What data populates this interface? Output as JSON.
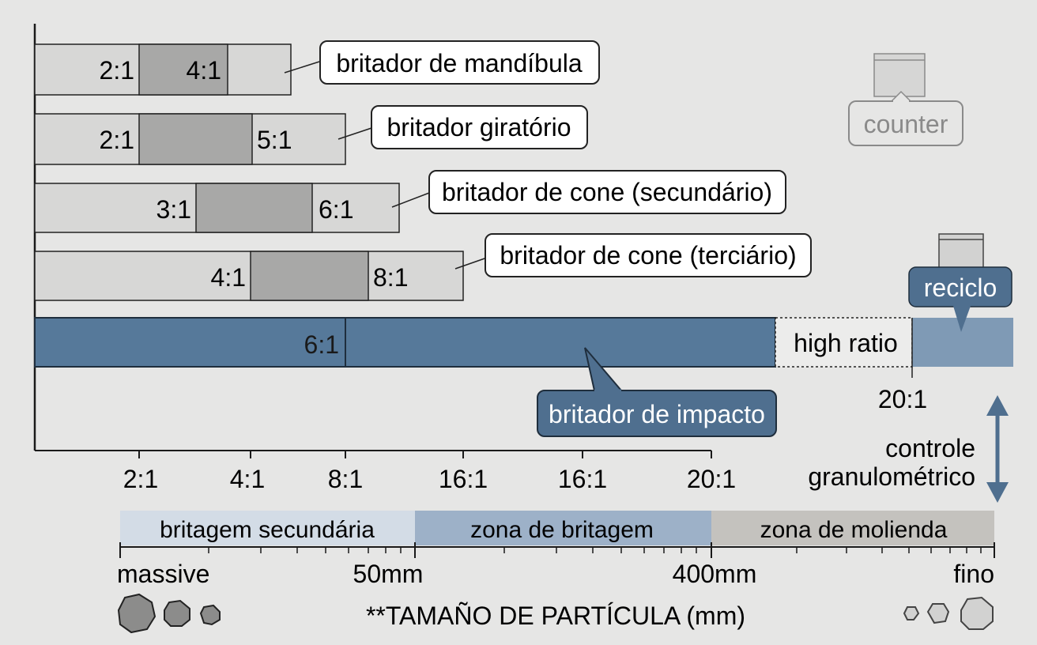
{
  "crushers": [
    {
      "label": "britador de mandíbula",
      "ratio_low": "2:1",
      "ratio_high": "4:1"
    },
    {
      "label": "britador giratório",
      "ratio_low": "2:1",
      "ratio_high": "5:1"
    },
    {
      "label": "britador de cone (secundário)",
      "ratio_low": "3:1",
      "ratio_high": "6:1"
    },
    {
      "label": "britador de cone (terciário)",
      "ratio_low": "4:1",
      "ratio_high": "8:1"
    }
  ],
  "impact": {
    "label": "britador de impacto",
    "ratio": "6:1",
    "high_ratio_label": "high ratio",
    "recycle_label": "reciclo",
    "max_ratio": "20:1"
  },
  "counter_label": "counter",
  "control_label_line1": "controle",
  "control_label_line2": "granulométrico",
  "x_axis_ticks": [
    "2:1",
    "4:1",
    "8:1",
    "16:1",
    "16:1",
    "20:1"
  ],
  "zones": [
    "britagem secundária",
    "zona de britagem",
    "zona de molienda"
  ],
  "size_labels": {
    "left": "massive",
    "mid1": "50mm",
    "mid2": "400mm",
    "right": "fino"
  },
  "axis_title": "**TAMAÑO DE PARTÍCULA (mm)",
  "colors": {
    "background": "#e6e6e5",
    "bar_light": "#d7d7d6",
    "bar_dark": "#a8a8a7",
    "impact_blue": "#56799a",
    "impact_blue_light": "#7f9ab5",
    "callout_blue": "#4f6f8f",
    "zone1": "#d3dce6",
    "zone2": "#9db1c8",
    "zone3": "#c4c2be"
  }
}
